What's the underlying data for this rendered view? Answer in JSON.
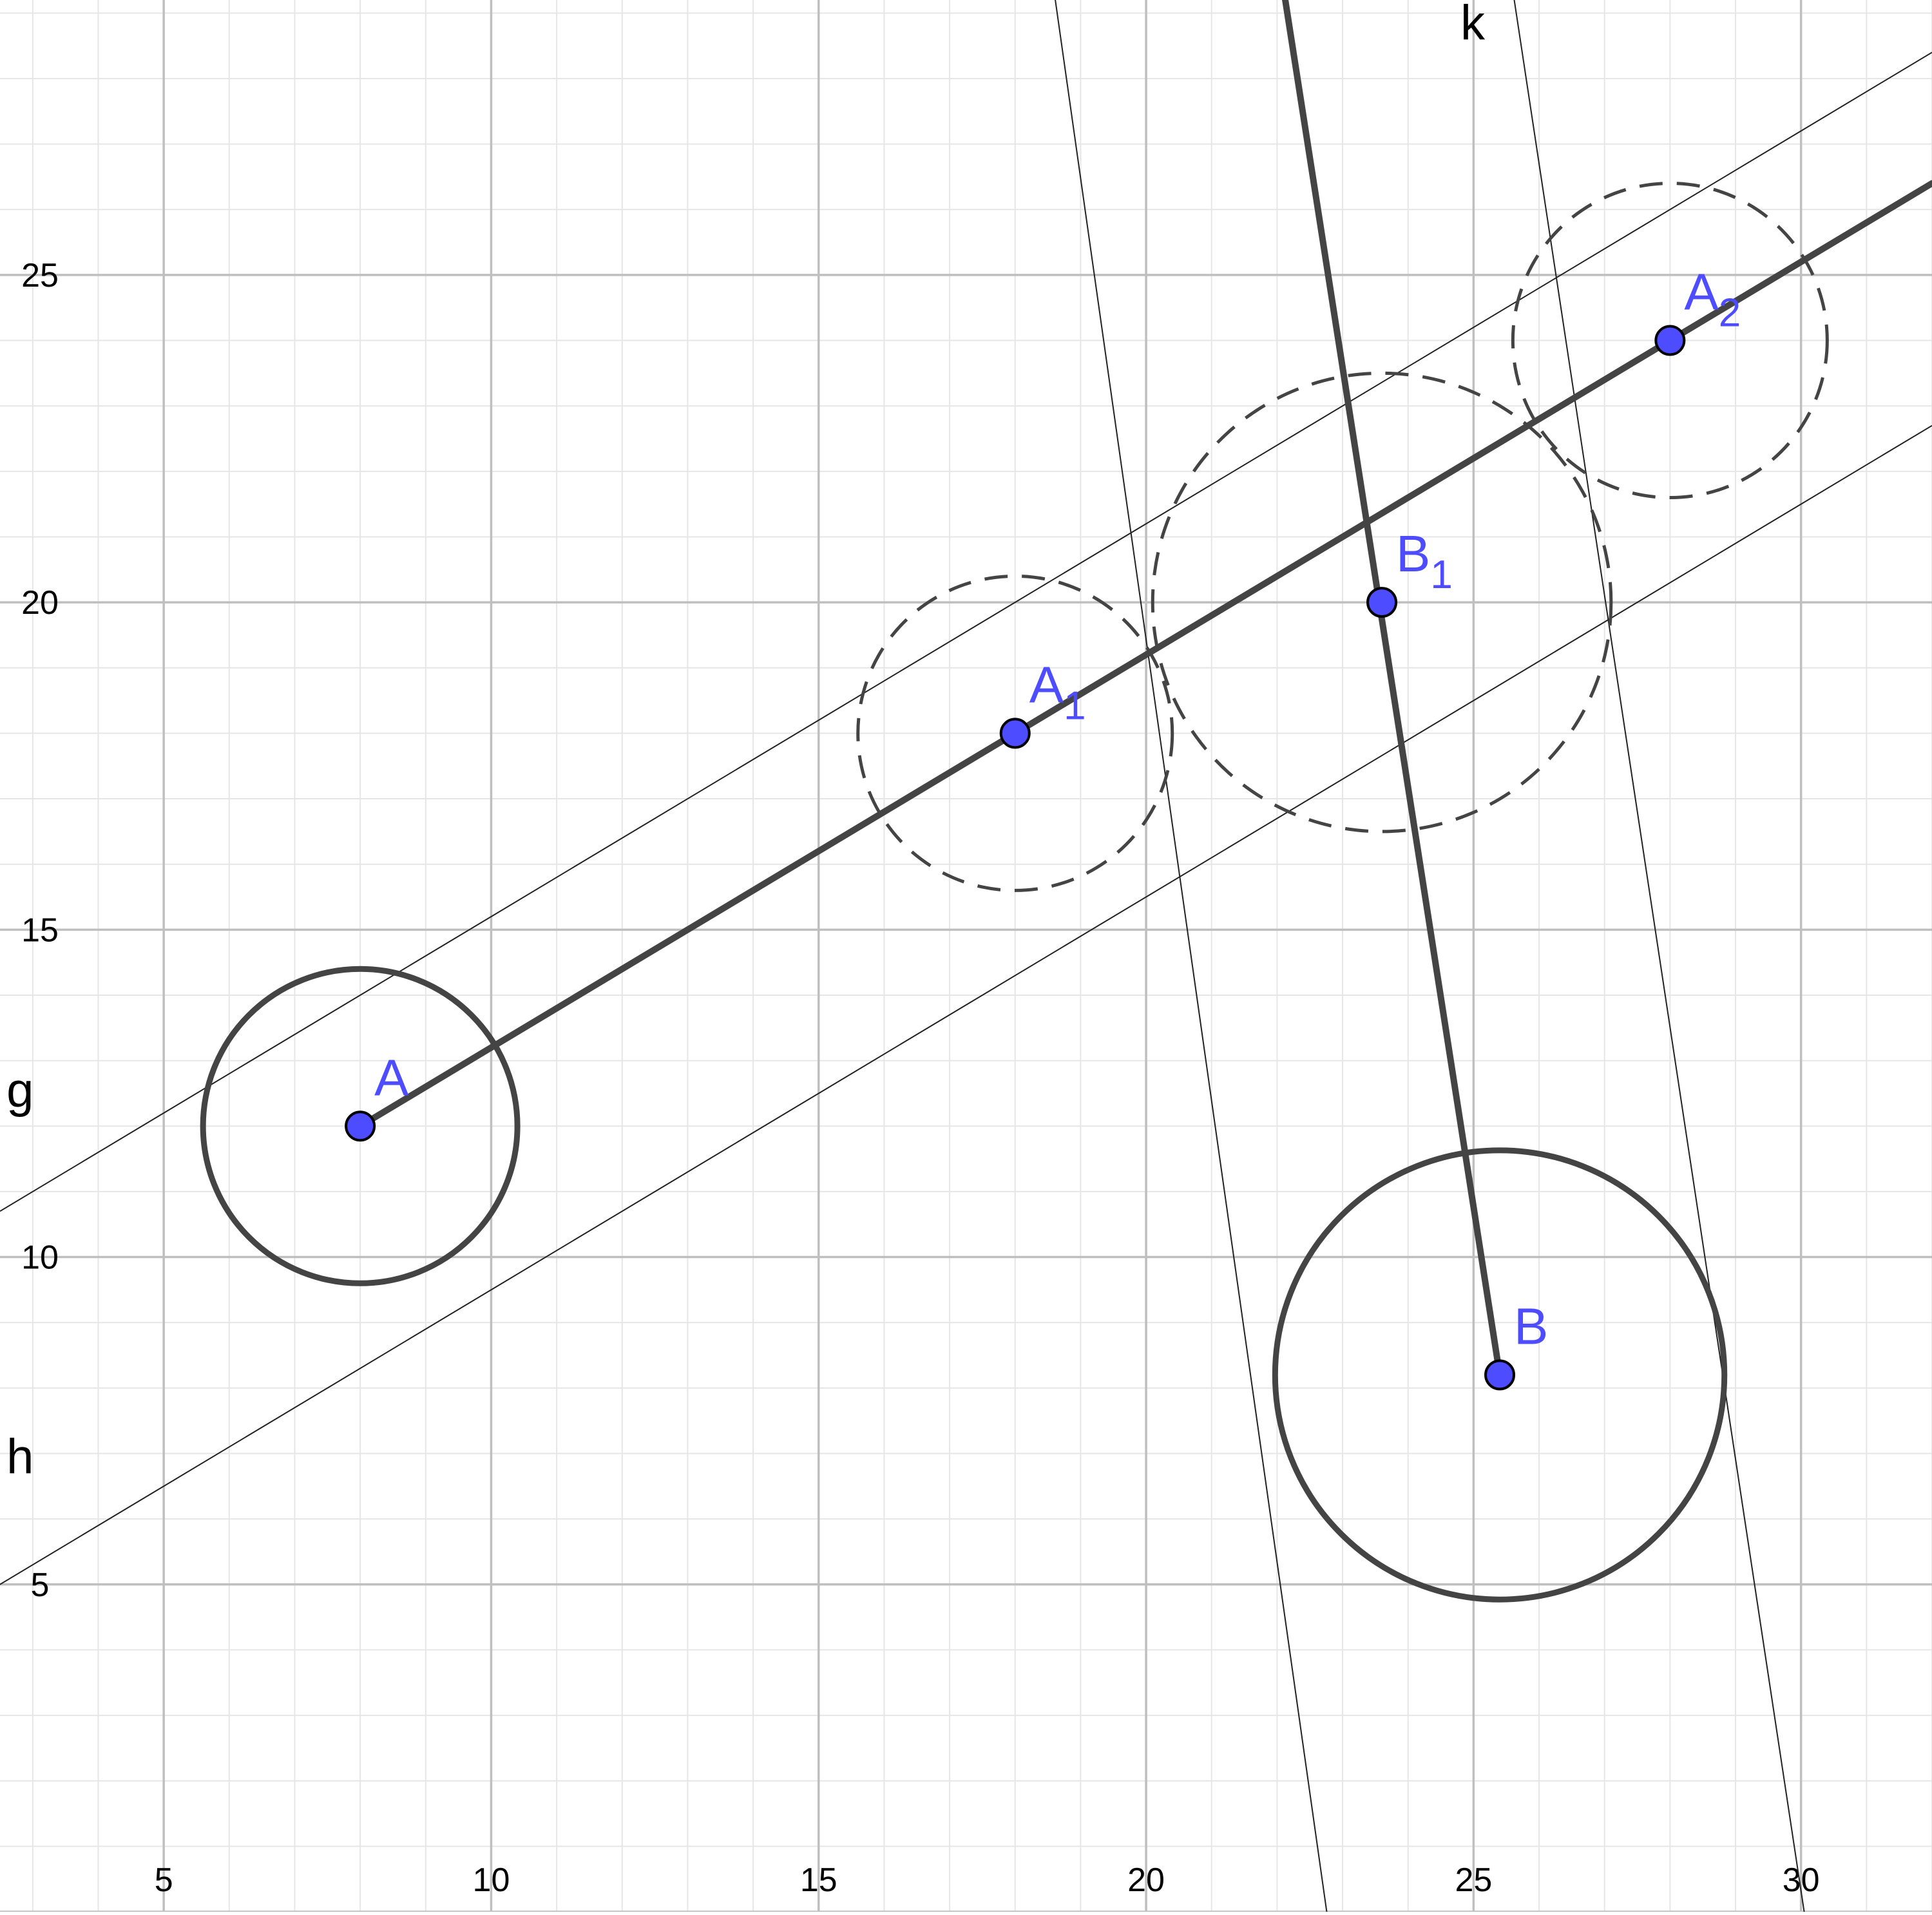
{
  "view": {
    "x_range": [
      2.5,
      32
    ],
    "y_range": [
      0,
      29.2
    ],
    "x_ticks": [
      5,
      10,
      15,
      20,
      25,
      30
    ],
    "y_ticks": [
      5,
      10,
      15,
      20,
      25
    ],
    "minor_step": 1,
    "major_step": 5,
    "colors": {
      "background": "#ffffff",
      "minor_grid": "#e6e6e6",
      "major_grid": "#bfbfbf",
      "geometry": "#444444",
      "point_fill": "#4d4dff",
      "point_label": "#4d4dff"
    }
  },
  "points": [
    {
      "id": "A",
      "label": "A",
      "sub": "",
      "x": 8,
      "y": 12
    },
    {
      "id": "A1",
      "label": "A",
      "sub": "1",
      "x": 18,
      "y": 18
    },
    {
      "id": "A2",
      "label": "A",
      "sub": "2",
      "x": 28,
      "y": 24
    },
    {
      "id": "B",
      "label": "B",
      "sub": "",
      "x": 25.4,
      "y": 8.2
    },
    {
      "id": "B1",
      "label": "B",
      "sub": "1",
      "x": 23.6,
      "y": 20
    }
  ],
  "circles": [
    {
      "id": "circle-A",
      "cx": 8,
      "cy": 12,
      "r": 2.4,
      "style": "solid"
    },
    {
      "id": "circle-B",
      "cx": 25.4,
      "cy": 8.2,
      "r": 3.43,
      "style": "solid"
    },
    {
      "id": "circle-A1",
      "cx": 18,
      "cy": 18,
      "r": 2.4,
      "style": "dashed"
    },
    {
      "id": "circle-A2",
      "cx": 28,
      "cy": 24,
      "r": 2.4,
      "style": "dashed"
    },
    {
      "id": "circle-B1",
      "cx": 23.6,
      "cy": 20,
      "r": 3.5,
      "style": "dashed"
    }
  ],
  "segments": [
    {
      "id": "segment-a-a2",
      "from": [
        8,
        12
      ],
      "to": [
        32,
        26.4
      ],
      "style": "thick"
    },
    {
      "id": "segment-b-upper",
      "from": [
        25.4,
        8.2
      ],
      "to": [
        22,
        30
      ],
      "style": "thick"
    }
  ],
  "lines": [
    {
      "id": "line-g",
      "name": "g",
      "from": [
        2.5,
        10.7
      ],
      "to": [
        32,
        28.4
      ]
    },
    {
      "id": "line-h",
      "name": "h",
      "from": [
        2.5,
        5.0
      ],
      "to": [
        32,
        22.7
      ]
    },
    {
      "id": "line-k",
      "name": "k",
      "from": [
        25.5,
        30
      ],
      "to": [
        30.2,
        -1
      ]
    },
    {
      "id": "line-k2",
      "name": "",
      "from": [
        18.5,
        30
      ],
      "to": [
        22.9,
        -1
      ]
    }
  ],
  "line_labels": [
    {
      "id": "g",
      "text": "g",
      "x": 2.6,
      "y": 12.3
    },
    {
      "id": "h",
      "text": "h",
      "x": 2.6,
      "y": 6.7
    },
    {
      "id": "k",
      "text": "k",
      "x": 24.8,
      "y": 28.6
    }
  ]
}
